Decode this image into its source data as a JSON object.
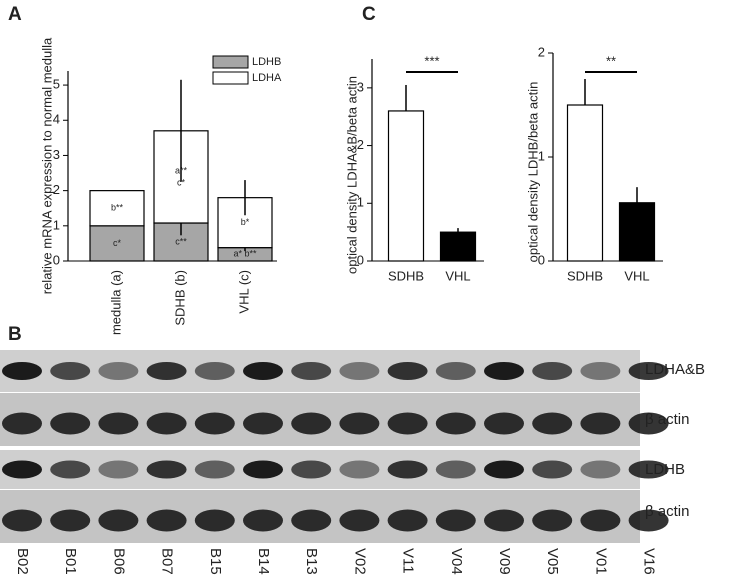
{
  "chart_data": [
    {
      "type": "stacked_bar",
      "panel": "A",
      "ylabel": "relative mRNA expression to normal medulla",
      "categories": [
        "medulla (a)",
        "SDHB (b)",
        "VHL (c)"
      ],
      "series": [
        {
          "name": "LDHB",
          "color": "#a6a6a6",
          "values": [
            1.0,
            1.08,
            0.38
          ],
          "errors": [
            null,
            0.35,
            0.1
          ],
          "segment_labels": [
            [
              "c*"
            ],
            [
              "c**"
            ],
            [
              "a* b**"
            ]
          ]
        },
        {
          "name": "LDHA",
          "color": "#ffffff",
          "values": [
            1.0,
            2.62,
            1.42
          ],
          "errors": [
            null,
            1.45,
            0.5
          ],
          "segment_labels": [
            [
              "b**"
            ],
            [
              "a**",
              "c*"
            ],
            [
              "b*"
            ]
          ]
        }
      ],
      "ylim": [
        0,
        5.4
      ],
      "yticks": [
        0,
        1,
        2,
        3,
        4,
        5
      ]
    },
    {
      "type": "bar",
      "panel": "C",
      "ylabel": "optical density LDHA&B/beta actin",
      "categories": [
        "SDHB",
        "VHL"
      ],
      "values": [
        2.6,
        0.5
      ],
      "errors": [
        0.45,
        0.07
      ],
      "colors": [
        "#ffffff",
        "#000000"
      ],
      "significance": "***",
      "ylim": [
        0,
        3.5
      ],
      "yticks": [
        0,
        1,
        2,
        3
      ]
    },
    {
      "type": "bar",
      "ylabel": "optical density LDHB/beta actin",
      "categories": [
        "SDHB",
        "VHL"
      ],
      "values": [
        1.5,
        0.56
      ],
      "errors": [
        0.25,
        0.15
      ],
      "colors": [
        "#ffffff",
        "#000000"
      ],
      "significance": "**",
      "ylim": [
        0,
        2
      ],
      "yticks": [
        0,
        1,
        2
      ]
    }
  ],
  "blot": {
    "panel": "B",
    "rows": [
      "LDHA&B",
      "β actin",
      "LDHB",
      "β actin"
    ],
    "lanes": [
      "B02",
      "B01",
      "B06",
      "B07",
      "B15",
      "B14",
      "B13",
      "V02",
      "V11",
      "V04",
      "V09",
      "V05",
      "V01",
      "V16"
    ]
  }
}
